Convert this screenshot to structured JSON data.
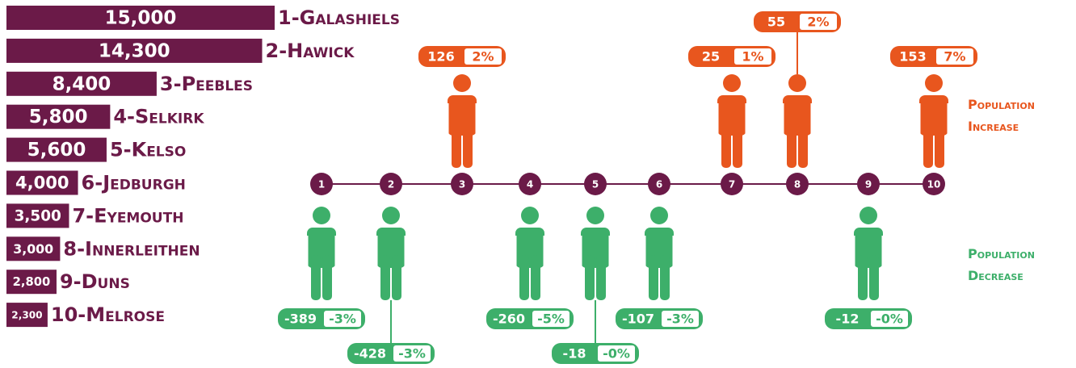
{
  "chart_data": [
    {
      "type": "hbar",
      "categories": [
        "1-Galashiels",
        "2-Hawick",
        "3-Peebles",
        "4-Selkirk",
        "5-Kelso",
        "6-Jedburgh",
        "7-Eyemouth",
        "8-Innerleithen",
        "9-Duns",
        "10-Melrose"
      ],
      "values": [
        15000,
        14300,
        8400,
        5800,
        5600,
        4000,
        3500,
        3000,
        2800,
        2300
      ],
      "value_labels": [
        "15,000",
        "14,300",
        "8,400",
        "5,800",
        "5,600",
        "4,000",
        "3,500",
        "3,000",
        "2,800",
        "2,300"
      ],
      "color": "#6b1a48"
    },
    {
      "type": "pictogram",
      "categories": [
        "1",
        "2",
        "3",
        "4",
        "5",
        "6",
        "7",
        "8",
        "9",
        "10"
      ],
      "values": [
        -389,
        -428,
        126,
        -260,
        -18,
        -107,
        25,
        55,
        -12,
        153
      ],
      "percent_labels": [
        "-3%",
        "-3%",
        "2%",
        "-5%",
        "-0%",
        "-3%",
        "1%",
        "2%",
        "-0%",
        "7%"
      ],
      "increase_label": "Population Increase",
      "decrease_label": "Population Decrease",
      "increase_color": "#e8561e",
      "decrease_color": "#3daf6a",
      "line_color": "#6b1a48"
    }
  ]
}
